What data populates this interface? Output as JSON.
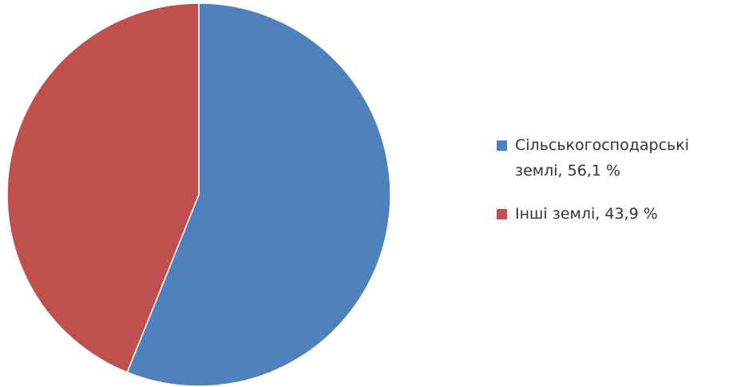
{
  "chart_data": {
    "type": "pie",
    "categories": [
      "Сільськогосподарські землі, 56,1 %",
      "Інші землі, 43,9 %"
    ],
    "values": [
      56.1,
      43.9
    ],
    "colors": [
      "#4f81bd",
      "#c0504d"
    ],
    "legend": "right"
  }
}
